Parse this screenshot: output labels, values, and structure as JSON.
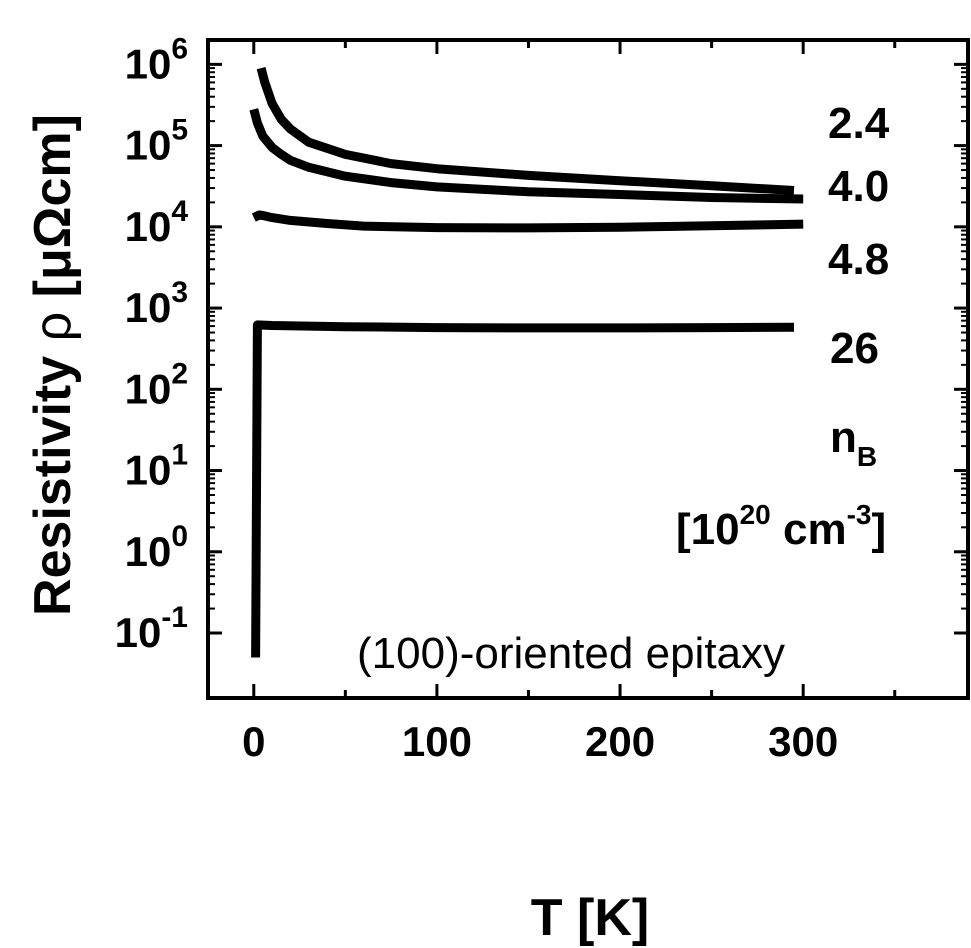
{
  "chart_data": {
    "type": "line",
    "xlabel": "T [K]",
    "ylabel": {
      "prefix": "Resistivity ",
      "symbol": "ρ",
      "suffix": " [μΩcm]"
    },
    "xlim": [
      -25,
      390
    ],
    "ylim_log10": [
      -1.8,
      6.3
    ],
    "log_y": true,
    "x_ticks": [
      {
        "value": 0,
        "label": "0"
      },
      {
        "value": 100,
        "label": "100"
      },
      {
        "value": 200,
        "label": "200"
      },
      {
        "value": 300,
        "label": "300"
      }
    ],
    "y_ticks": [
      {
        "exp": 6,
        "base": "10",
        "sup": "6"
      },
      {
        "exp": 5,
        "base": "10",
        "sup": "5"
      },
      {
        "exp": 4,
        "base": "10",
        "sup": "4"
      },
      {
        "exp": 3,
        "base": "10",
        "sup": "3"
      },
      {
        "exp": 2,
        "base": "10",
        "sup": "2"
      },
      {
        "exp": 1,
        "base": "10",
        "sup": "1"
      },
      {
        "exp": 0,
        "base": "10",
        "sup": "0"
      },
      {
        "exp": -1,
        "base": "10",
        "sup": "-1"
      }
    ],
    "series": [
      {
        "label": "2.4",
        "x": [
          4,
          6,
          10,
          15,
          20,
          30,
          50,
          75,
          100,
          150,
          200,
          250,
          295
        ],
        "y": [
          900000,
          600000,
          330000,
          210000,
          160000,
          110000,
          78000,
          60000,
          52000,
          43000,
          37000,
          32000,
          28000
        ]
      },
      {
        "label": "4.0",
        "x": [
          0,
          2,
          5,
          10,
          15,
          20,
          30,
          50,
          75,
          100,
          150,
          200,
          250,
          300
        ],
        "y": [
          280000,
          190000,
          130000,
          95000,
          78000,
          66000,
          54000,
          42000,
          35000,
          31000,
          27000,
          25000,
          23000,
          22000
        ]
      },
      {
        "label": "4.8",
        "x": [
          0,
          3,
          5,
          10,
          20,
          40,
          60,
          100,
          150,
          200,
          250,
          300
        ],
        "y": [
          13000,
          14000,
          13800,
          13000,
          12000,
          11000,
          10200,
          9800,
          9700,
          9900,
          10300,
          10800
        ]
      },
      {
        "label": "26",
        "x": [
          1,
          2,
          10,
          50,
          100,
          150,
          200,
          250,
          295
        ],
        "y": [
          0.05,
          620,
          610,
          590,
          575,
          570,
          570,
          575,
          580
        ]
      }
    ],
    "annotations": {
      "nb_main": "n",
      "nb_sub": "B",
      "units_open": "[10",
      "units_sup1": "20",
      "units_mid": " cm",
      "units_sup2": "-3",
      "units_close": "]",
      "orientation": "(100)-oriented epitaxy"
    },
    "grid": false,
    "legend": "none"
  }
}
